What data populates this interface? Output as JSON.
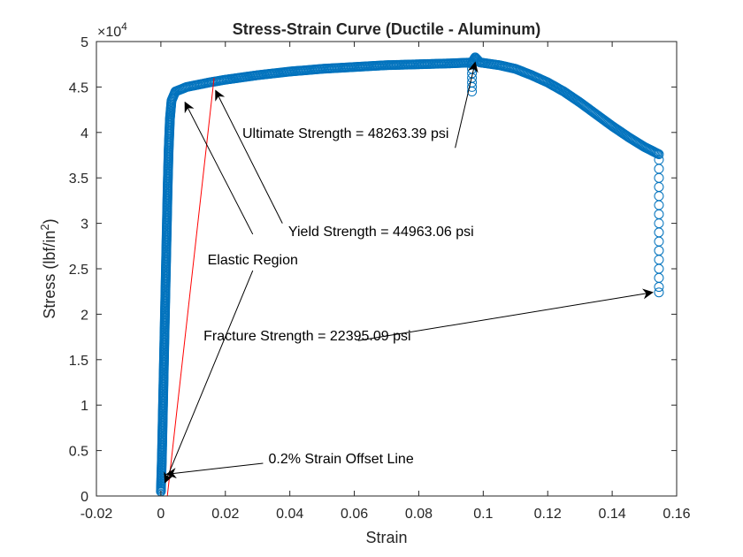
{
  "chart_data": {
    "type": "scatter",
    "title": "Stress-Strain Curve (Ductile - Aluminum)",
    "xlabel": "Strain",
    "ylabel_main": "Stress (lbf/in",
    "ylabel_sup": "2",
    "ylabel_close": ")",
    "y_exponent_base": "×10",
    "y_exponent_power": "4",
    "xlim": [
      -0.02,
      0.16
    ],
    "ylim": [
      0,
      5
    ],
    "y_multiplier": 10000,
    "grid": false,
    "x_ticks": [
      -0.02,
      0,
      0.02,
      0.04,
      0.06,
      0.08,
      0.1,
      0.12,
      0.14,
      0.16
    ],
    "x_tick_labels": [
      "-0.02",
      "0",
      "0.02",
      "0.04",
      "0.06",
      "0.08",
      "0.1",
      "0.12",
      "0.14",
      "0.16"
    ],
    "y_ticks": [
      0,
      0.5,
      1,
      1.5,
      2,
      2.5,
      3,
      3.5,
      4,
      4.5,
      5
    ],
    "y_tick_labels": [
      "0",
      "0.5",
      "1",
      "1.5",
      "2",
      "2.5",
      "3",
      "3.5",
      "4",
      "4.5",
      "5"
    ],
    "series": [
      {
        "marker": "open-circle",
        "color": "#0072BD",
        "points": [
          [
            0,
            0.05
          ],
          [
            0.0003,
            0.4
          ],
          [
            0.0006,
            0.9
          ],
          [
            0.0009,
            1.4
          ],
          [
            0.0012,
            1.9
          ],
          [
            0.0015,
            2.4
          ],
          [
            0.0018,
            2.9
          ],
          [
            0.0021,
            3.4
          ],
          [
            0.0024,
            3.8
          ],
          [
            0.0028,
            4.15
          ],
          [
            0.0033,
            4.35
          ],
          [
            0.0045,
            4.45
          ],
          [
            0.008,
            4.5
          ],
          [
            0.015,
            4.55
          ],
          [
            0.02,
            4.58
          ],
          [
            0.03,
            4.63
          ],
          [
            0.04,
            4.67
          ],
          [
            0.05,
            4.7
          ],
          [
            0.06,
            4.72
          ],
          [
            0.07,
            4.74
          ],
          [
            0.08,
            4.75
          ],
          [
            0.09,
            4.76
          ],
          [
            0.0965,
            4.77
          ],
          [
            0.0975,
            4.826
          ],
          [
            0.099,
            4.77
          ],
          [
            0.105,
            4.74
          ],
          [
            0.11,
            4.7
          ],
          [
            0.115,
            4.63
          ],
          [
            0.12,
            4.55
          ],
          [
            0.125,
            4.45
          ],
          [
            0.13,
            4.33
          ],
          [
            0.135,
            4.2
          ],
          [
            0.14,
            4.07
          ],
          [
            0.145,
            3.95
          ],
          [
            0.15,
            3.84
          ],
          [
            0.1545,
            3.76
          ]
        ],
        "drop_points": [
          [
            0.0965,
            4.75
          ],
          [
            0.0965,
            4.7
          ],
          [
            0.0965,
            4.65
          ],
          [
            0.0965,
            4.6
          ],
          [
            0.0965,
            4.55
          ],
          [
            0.0965,
            4.5
          ],
          [
            0.0965,
            4.45
          ],
          [
            0.1545,
            3.7
          ],
          [
            0.1545,
            3.6
          ],
          [
            0.1545,
            3.5
          ],
          [
            0.1545,
            3.4
          ],
          [
            0.1545,
            3.3
          ],
          [
            0.1545,
            3.2
          ],
          [
            0.1545,
            3.1
          ],
          [
            0.1545,
            3.0
          ],
          [
            0.1545,
            2.9
          ],
          [
            0.1545,
            2.8
          ],
          [
            0.1545,
            2.7
          ],
          [
            0.1545,
            2.6
          ],
          [
            0.1545,
            2.5
          ],
          [
            0.1545,
            2.4
          ],
          [
            0.1545,
            2.3
          ],
          [
            0.1545,
            2.24
          ]
        ]
      },
      {
        "marker": "line",
        "color": "#ff0000",
        "points": [
          [
            0.002,
            0
          ],
          [
            0.0165,
            4.6
          ]
        ]
      }
    ],
    "annotations": [
      {
        "text": "Ultimate Strength = 48263.39 psi",
        "text_at": [
          0.0573,
          3.94
        ],
        "align": "middle",
        "arrow_from": [
          0.0913,
          3.83
        ],
        "arrow_to": [
          0.0975,
          4.77
        ]
      },
      {
        "text": "Yield Strength = 44963.06 psi",
        "text_at": [
          0.0683,
          2.86
        ],
        "align": "middle",
        "arrow_from": [
          0.0377,
          3.0
        ],
        "arrow_to": [
          0.017,
          4.46
        ]
      },
      {
        "text": "Elastic Region",
        "text_at": [
          0.0285,
          2.55
        ],
        "align": "middle",
        "arrow_from": [
          0.0285,
          2.88
        ],
        "arrow_to": [
          0.0075,
          4.33
        ]
      },
      {
        "text": "Elastic Region",
        "text_at": [
          0.0285,
          2.55
        ],
        "align": "none",
        "arrow_from": [
          0.0285,
          2.48
        ],
        "arrow_to": [
          0.0013,
          0.15
        ]
      },
      {
        "text": "Fracture Strength = 22395.09 psi",
        "text_at": [
          0.0454,
          1.71
        ],
        "align": "middle",
        "arrow_from": [
          0.0612,
          1.71
        ],
        "arrow_to": [
          0.1525,
          2.24
        ]
      },
      {
        "text": "0.2% Strain Offset Line",
        "text_at": [
          0.0559,
          0.36
        ],
        "align": "middle",
        "arrow_from": [
          0.0317,
          0.36
        ],
        "arrow_to": [
          0.0018,
          0.24
        ]
      }
    ]
  }
}
